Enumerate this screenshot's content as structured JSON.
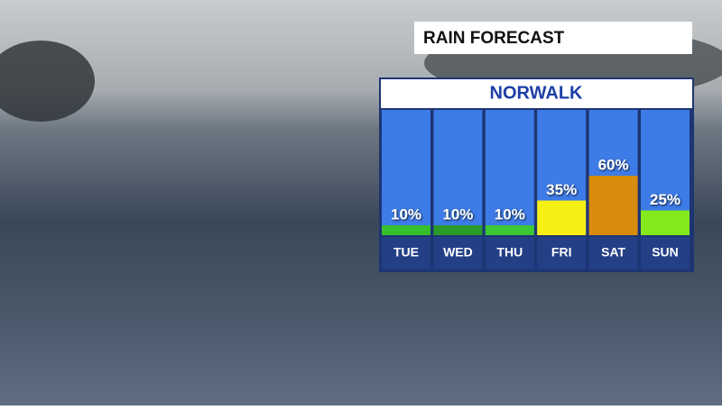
{
  "chart_data": {
    "type": "bar",
    "title": "RAIN FORECAST",
    "subtitle": "NORWALK",
    "categories": [
      "TUE",
      "WED",
      "THU",
      "FRI",
      "SAT",
      "SUN"
    ],
    "values": [
      10,
      10,
      10,
      35,
      60,
      25
    ],
    "value_labels": [
      "10%",
      "10%",
      "10%",
      "35%",
      "60%",
      "25%"
    ],
    "colors": [
      "#35c02c",
      "#2a9a2a",
      "#3cc735",
      "#f5ef16",
      "#d98b0b",
      "#84e81c"
    ]
  }
}
